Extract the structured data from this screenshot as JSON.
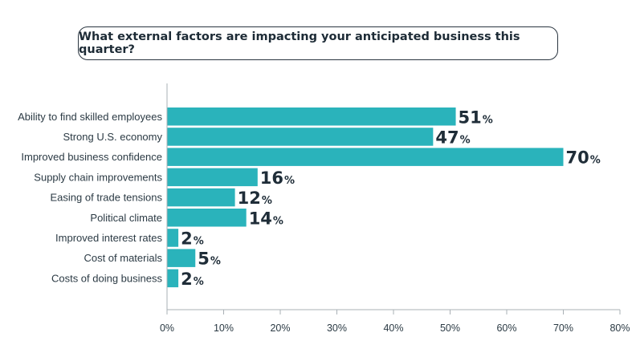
{
  "chart_data": {
    "type": "bar",
    "orientation": "horizontal",
    "title": "What external factors are impacting your anticipated business this quarter?",
    "categories": [
      "Ability to find skilled employees",
      "Strong U.S. economy",
      "Improved business confidence",
      "Supply chain improvements",
      "Easing of trade tensions",
      "Political climate",
      "Improved interest rates",
      "Cost of materials",
      "Costs of doing business"
    ],
    "values": [
      51,
      47,
      70,
      16,
      12,
      14,
      2,
      5,
      2
    ],
    "value_suffix": "%",
    "xlim": [
      0,
      80
    ],
    "xticks": [
      0,
      10,
      20,
      30,
      40,
      50,
      60,
      70,
      80
    ],
    "xtick_labels": [
      "0%",
      "10%",
      "20%",
      "30%",
      "40%",
      "50%",
      "60%",
      "70%",
      "80%"
    ],
    "xlabel": "",
    "ylabel": "",
    "grid": false,
    "bar_color": "#2ab3bb",
    "axis_color": "#a9b0b5"
  }
}
